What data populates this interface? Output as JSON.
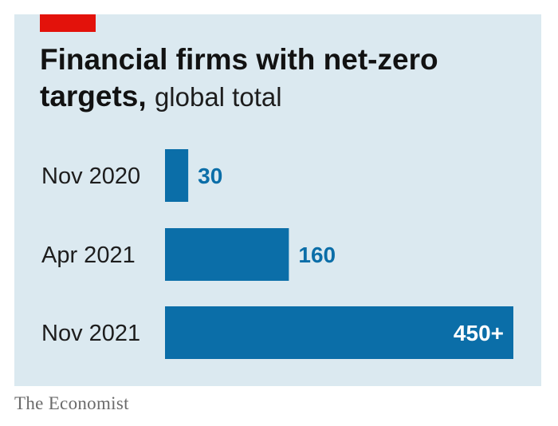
{
  "chart_data": {
    "type": "bar",
    "orientation": "horizontal",
    "title": "Financial firms with net-zero targets,",
    "subtitle": "global total",
    "categories": [
      "Nov 2020",
      "Apr 2021",
      "Nov 2021"
    ],
    "values": [
      30,
      160,
      450
    ],
    "value_labels": [
      "30",
      "160",
      "450+"
    ],
    "xlim": [
      0,
      450
    ],
    "grid": false,
    "legend": "none"
  },
  "colors": {
    "background": "#dbe9f0",
    "bar": "#0b6ea8",
    "accent": "#e3120b",
    "value_text_outside": "#0b6ea8",
    "value_text_inside": "#ffffff"
  },
  "source": "The Economist"
}
